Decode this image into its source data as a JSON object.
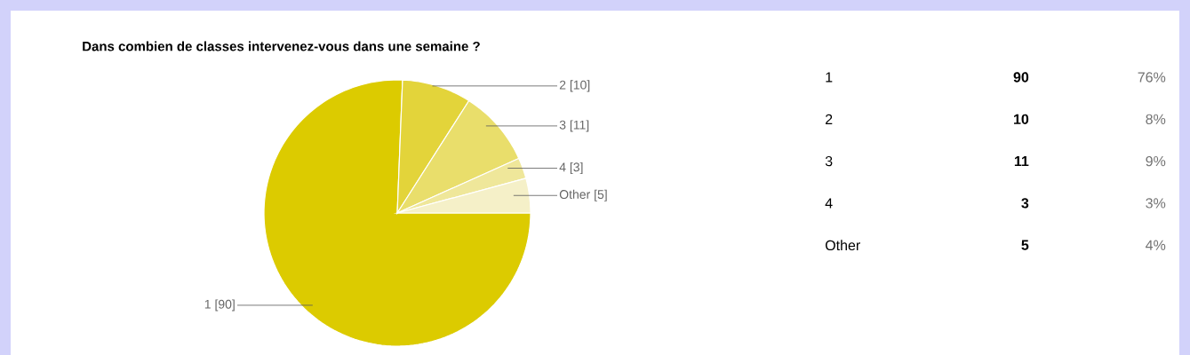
{
  "chart_data": {
    "type": "pie",
    "title": "Dans combien de classes intervenez-vous dans une semaine ?",
    "categories": [
      "1",
      "2",
      "3",
      "4",
      "Other"
    ],
    "values": [
      90,
      10,
      11,
      3,
      5
    ],
    "colors": [
      "#dccb00",
      "#e3d43a",
      "#e9de6b",
      "#efe79a",
      "#f5f0c8"
    ],
    "value_labels": [
      "[90]",
      "[10]",
      "[11]",
      "[3]",
      "[5]"
    ],
    "annotations": [
      "90",
      "76%",
      "10",
      "8%",
      "11",
      "9%",
      "3",
      "3%",
      "5",
      "4%"
    ]
  }
}
